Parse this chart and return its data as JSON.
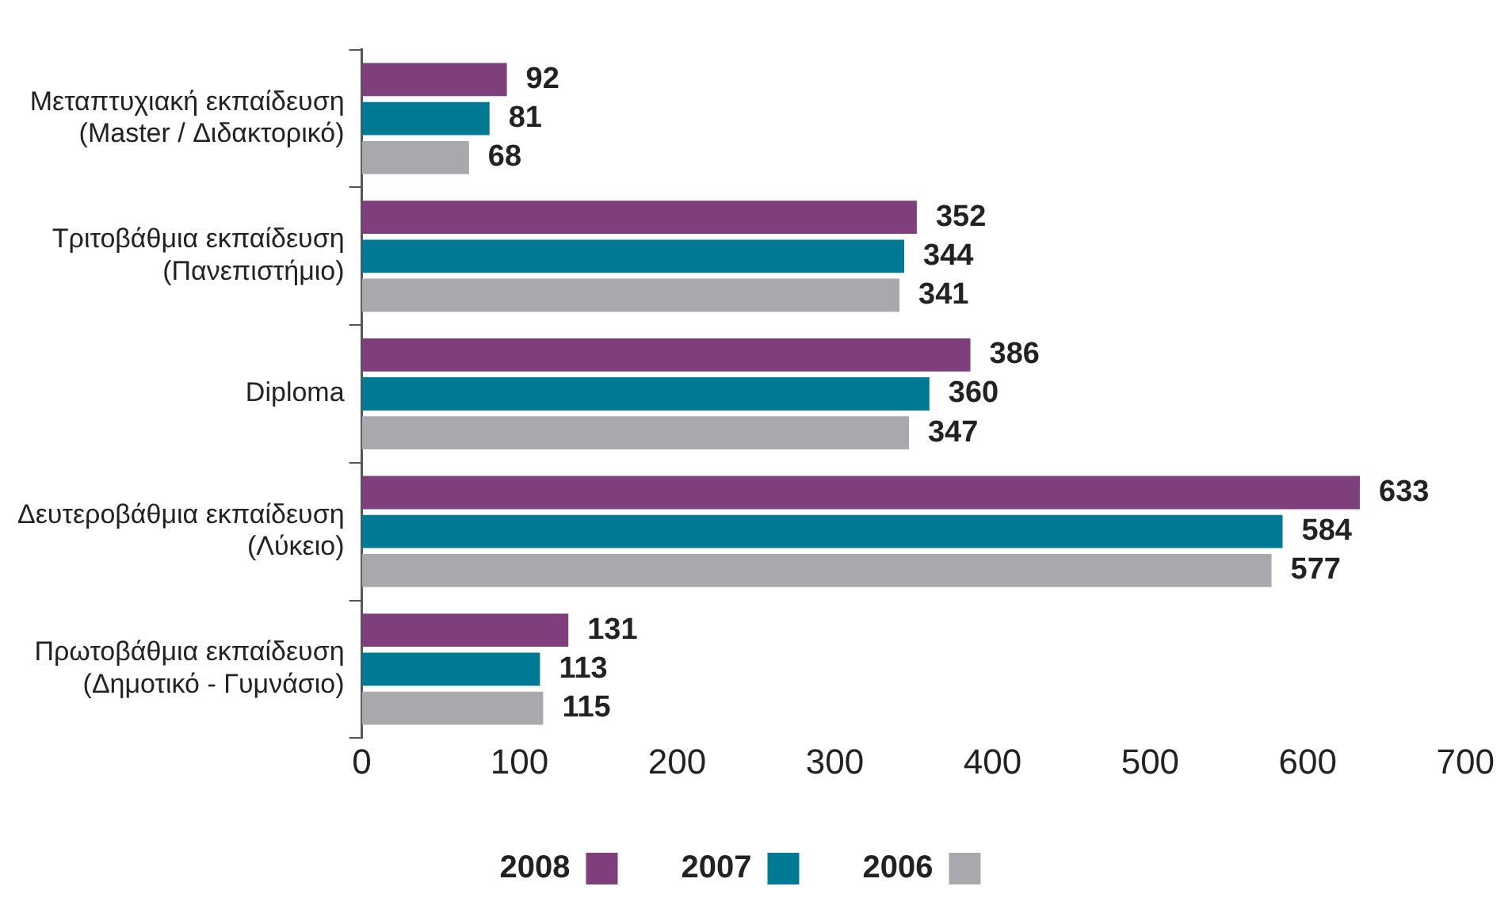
{
  "chart_data": {
    "type": "bar",
    "orientation": "horizontal",
    "categories": [
      "Μεταπτυχιακή εκπαίδευση\n(Master / Διδακτορικό)",
      "Τριτοβάθμια εκπαίδευση\n(Πανεπιστήμιο)",
      "Diploma",
      "Δευτεροβάθμια εκπαίδευση\n(Λύκειο)",
      "Πρωτοβάθμια εκπαίδευση\n(Δημοτικό - Γυμνάσιο)"
    ],
    "series": [
      {
        "name": "2008",
        "color": "#7f3f7c",
        "values": [
          92,
          352,
          386,
          633,
          131
        ]
      },
      {
        "name": "2007",
        "color": "#007a94",
        "values": [
          81,
          344,
          360,
          584,
          113
        ]
      },
      {
        "name": "2006",
        "color": "#a7a9ac",
        "values": [
          68,
          341,
          347,
          577,
          115
        ]
      }
    ],
    "xlim": [
      0,
      700
    ],
    "xticks": [
      0,
      100,
      200,
      300,
      400,
      500,
      600,
      700
    ],
    "grid": false,
    "legend": "bottom",
    "data_labels": true
  }
}
